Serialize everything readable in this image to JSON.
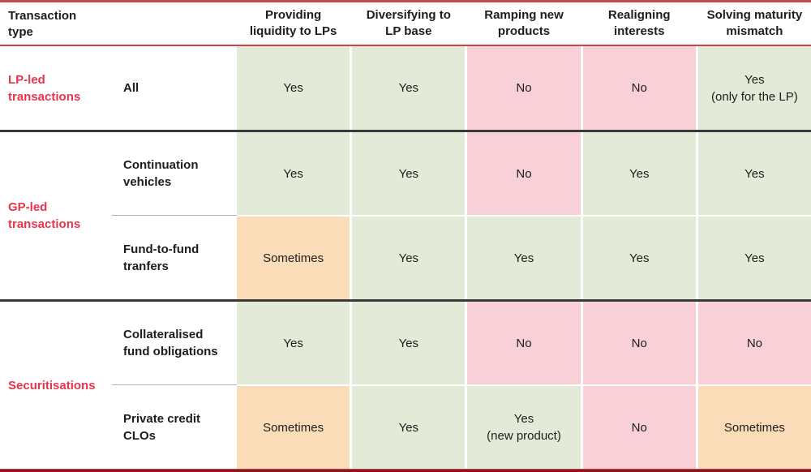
{
  "header": {
    "corner": "Transaction\ntype",
    "columns": [
      "Providing\nliquidity to LPs",
      "Diversifying to\nLP base",
      "Ramping new\nproducts",
      "Realigning\ninterests",
      "Solving maturity\nmismatch"
    ]
  },
  "groups": [
    {
      "label": "LP-led\ntransactions",
      "rows": [
        {
          "label": "All",
          "cells": [
            {
              "text": "Yes",
              "status": "yes"
            },
            {
              "text": "Yes",
              "status": "yes"
            },
            {
              "text": "No",
              "status": "no"
            },
            {
              "text": "No",
              "status": "no"
            },
            {
              "text": "Yes\n(only for the LP)",
              "status": "yes"
            }
          ]
        }
      ]
    },
    {
      "label": "GP-led\ntransactions",
      "rows": [
        {
          "label": "Continuation\nvehicles",
          "cells": [
            {
              "text": "Yes",
              "status": "yes"
            },
            {
              "text": "Yes",
              "status": "yes"
            },
            {
              "text": "No",
              "status": "no"
            },
            {
              "text": "Yes",
              "status": "yes"
            },
            {
              "text": "Yes",
              "status": "yes"
            }
          ]
        },
        {
          "label": "Fund-to-fund\ntranfers",
          "cells": [
            {
              "text": "Sometimes",
              "status": "sometimes"
            },
            {
              "text": "Yes",
              "status": "yes"
            },
            {
              "text": "Yes",
              "status": "yes"
            },
            {
              "text": "Yes",
              "status": "yes"
            },
            {
              "text": "Yes",
              "status": "yes"
            }
          ]
        }
      ]
    },
    {
      "label": "Securitisations",
      "rows": [
        {
          "label": "Collateralised\nfund obligations",
          "cells": [
            {
              "text": "Yes",
              "status": "yes"
            },
            {
              "text": "Yes",
              "status": "yes"
            },
            {
              "text": "No",
              "status": "no"
            },
            {
              "text": "No",
              "status": "no"
            },
            {
              "text": "No",
              "status": "no"
            }
          ]
        },
        {
          "label": "Private credit\nCLOs",
          "cells": [
            {
              "text": "Sometimes",
              "status": "sometimes"
            },
            {
              "text": "Yes",
              "status": "yes"
            },
            {
              "text": "Yes\n(new product)",
              "status": "yes"
            },
            {
              "text": "No",
              "status": "no"
            },
            {
              "text": "Sometimes",
              "status": "sometimes"
            }
          ]
        }
      ]
    }
  ],
  "status_colors": {
    "yes": "#e3ebd8",
    "no": "#f9d0d8",
    "sometimes": "#fbdcb8"
  },
  "accent_colors": {
    "group_label_text": "#e8354b",
    "outer_border_top": "#c8474f",
    "outer_border_bottom": "#8d161b",
    "section_divider": "#3a3a3a",
    "intra_group_divider": "#b3b3b3"
  }
}
